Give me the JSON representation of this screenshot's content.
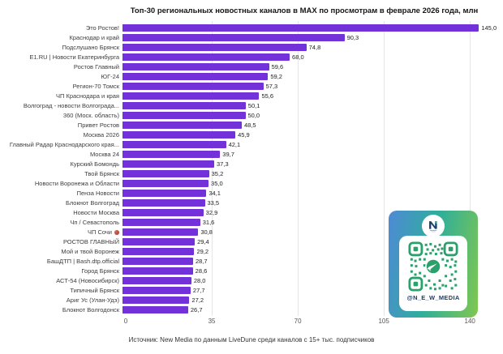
{
  "page": {
    "source": "Источник: New Media по данным LiveDune среди каналов с 15+ тыс. подписчиков"
  },
  "chart_data": {
    "type": "bar",
    "orientation": "horizontal",
    "title": "Топ-30 региональных новостных каналов в MAX по просмотрам в феврале 2026 года, млн",
    "xlabel": "",
    "ylabel": "",
    "xlim": [
      0,
      145
    ],
    "x_ticks": [
      0,
      35,
      70,
      105,
      140
    ],
    "grid": true,
    "legend": false,
    "bar_color": "#7231d9",
    "decimal_separator": ",",
    "categories": [
      "Это Ростов!",
      "Краснодар и край",
      "Подслушано Брянск",
      "E1.RU | Новости Екатеринбурга",
      "Ростов Главный",
      "ЮГ-24",
      "Регион-70 Томск",
      "ЧП Краснодара и края",
      "Волгоград - новости Волгограда...",
      "360 (Моск. область)",
      "Привет Ростов",
      "Москва 2026",
      "Главный Радар Краснодарского края...",
      "Москва 24",
      "Курский Бомондь",
      "Твой Брянск",
      "Новости Воронежа и Области",
      "Пенза Новости",
      "Блокнот Волгоград",
      "Новости Москва",
      "Чп / Севастополь",
      "ЧП Сочи 🚨",
      "РОСТОВ ГЛАВНЫЙ",
      "Мой и твой Воронеж",
      "БашДТП | Bash.dtp.official",
      "Город Брянск",
      "АСТ-54 (Новосибирск)",
      "Типичный Брянск",
      "Ариг Ус (Улан-Удэ)",
      "Блокнот Волгодонск"
    ],
    "values": [
      145.0,
      90.3,
      74.8,
      68.0,
      59.6,
      59.2,
      57.3,
      55.6,
      50.1,
      50.0,
      48.5,
      45.9,
      42.1,
      39.7,
      37.3,
      35.2,
      35.0,
      34.1,
      33.5,
      32.9,
      31.6,
      30.8,
      29.4,
      29.2,
      28.7,
      28.6,
      28.0,
      27.7,
      27.2,
      26.7
    ]
  },
  "badge": {
    "handle": "@N_E_W_MEDIA",
    "logo_letter": "N",
    "gradient_colors": [
      "#4e8ad6",
      "#2fae9a",
      "#80c74f"
    ],
    "qr_color": "#2aa06b"
  }
}
